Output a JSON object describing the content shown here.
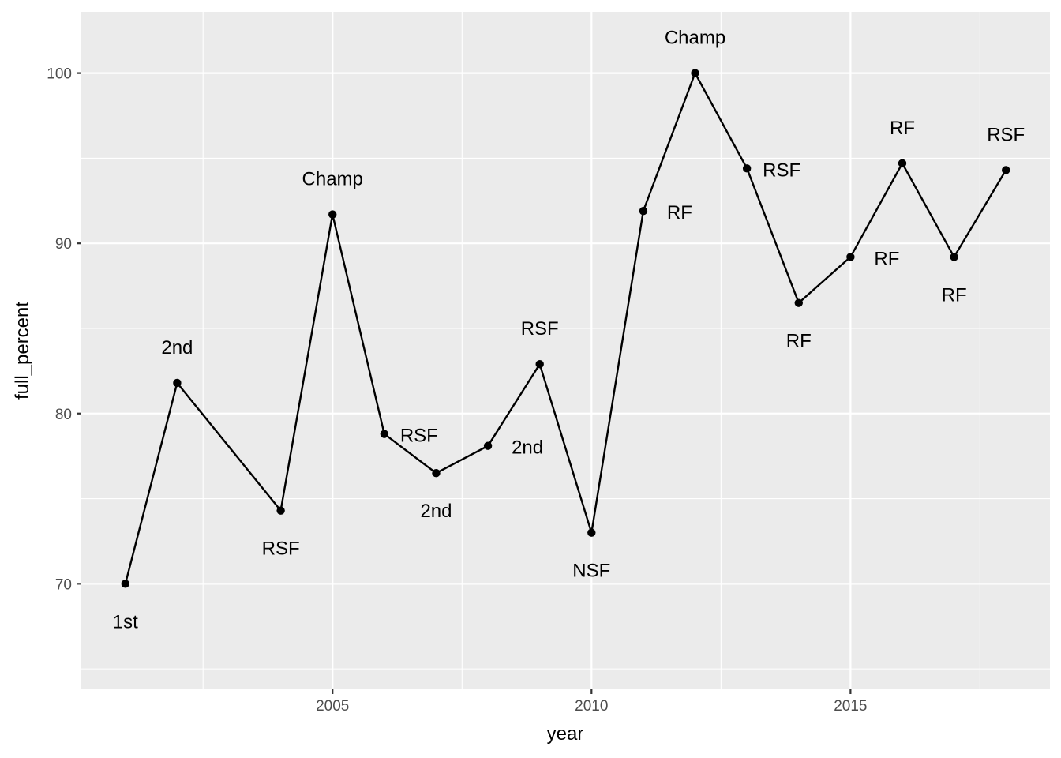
{
  "chart_data": {
    "type": "line",
    "xlabel": "year",
    "ylabel": "full_percent",
    "xlim": [
      2000.15,
      2018.85
    ],
    "ylim": [
      63.8,
      103.6
    ],
    "x_ticks": [
      2005,
      2010,
      2015
    ],
    "x_minor_ticks": [
      2002.5,
      2007.5,
      2012.5,
      2017.5
    ],
    "y_ticks": [
      70,
      80,
      90,
      100
    ],
    "y_minor_ticks": [
      65,
      75,
      85,
      95
    ],
    "grid": true,
    "points": [
      {
        "x": 2001,
        "y": 70.0,
        "label": "1st"
      },
      {
        "x": 2002,
        "y": 81.8,
        "label": "2nd"
      },
      {
        "x": 2004,
        "y": 74.3,
        "label": "RSF"
      },
      {
        "x": 2005,
        "y": 91.7,
        "label": "Champ"
      },
      {
        "x": 2006,
        "y": 78.8,
        "label": "RSF"
      },
      {
        "x": 2007,
        "y": 76.5,
        "label": "2nd"
      },
      {
        "x": 2008,
        "y": 78.1,
        "label": "2nd"
      },
      {
        "x": 2009,
        "y": 82.9,
        "label": "RSF"
      },
      {
        "x": 2010,
        "y": 73.0,
        "label": "NSF"
      },
      {
        "x": 2011,
        "y": 91.9,
        "label": "RF"
      },
      {
        "x": 2012,
        "y": 100.0,
        "label": "Champ"
      },
      {
        "x": 2013,
        "y": 94.4,
        "label": "RSF"
      },
      {
        "x": 2014,
        "y": 86.5,
        "label": "RF"
      },
      {
        "x": 2015,
        "y": 89.2,
        "label": "RF"
      },
      {
        "x": 2016,
        "y": 94.7,
        "label": "RF"
      },
      {
        "x": 2017,
        "y": 89.2,
        "label": "RF"
      },
      {
        "x": 2018,
        "y": 94.3,
        "label": "RSF"
      }
    ]
  }
}
